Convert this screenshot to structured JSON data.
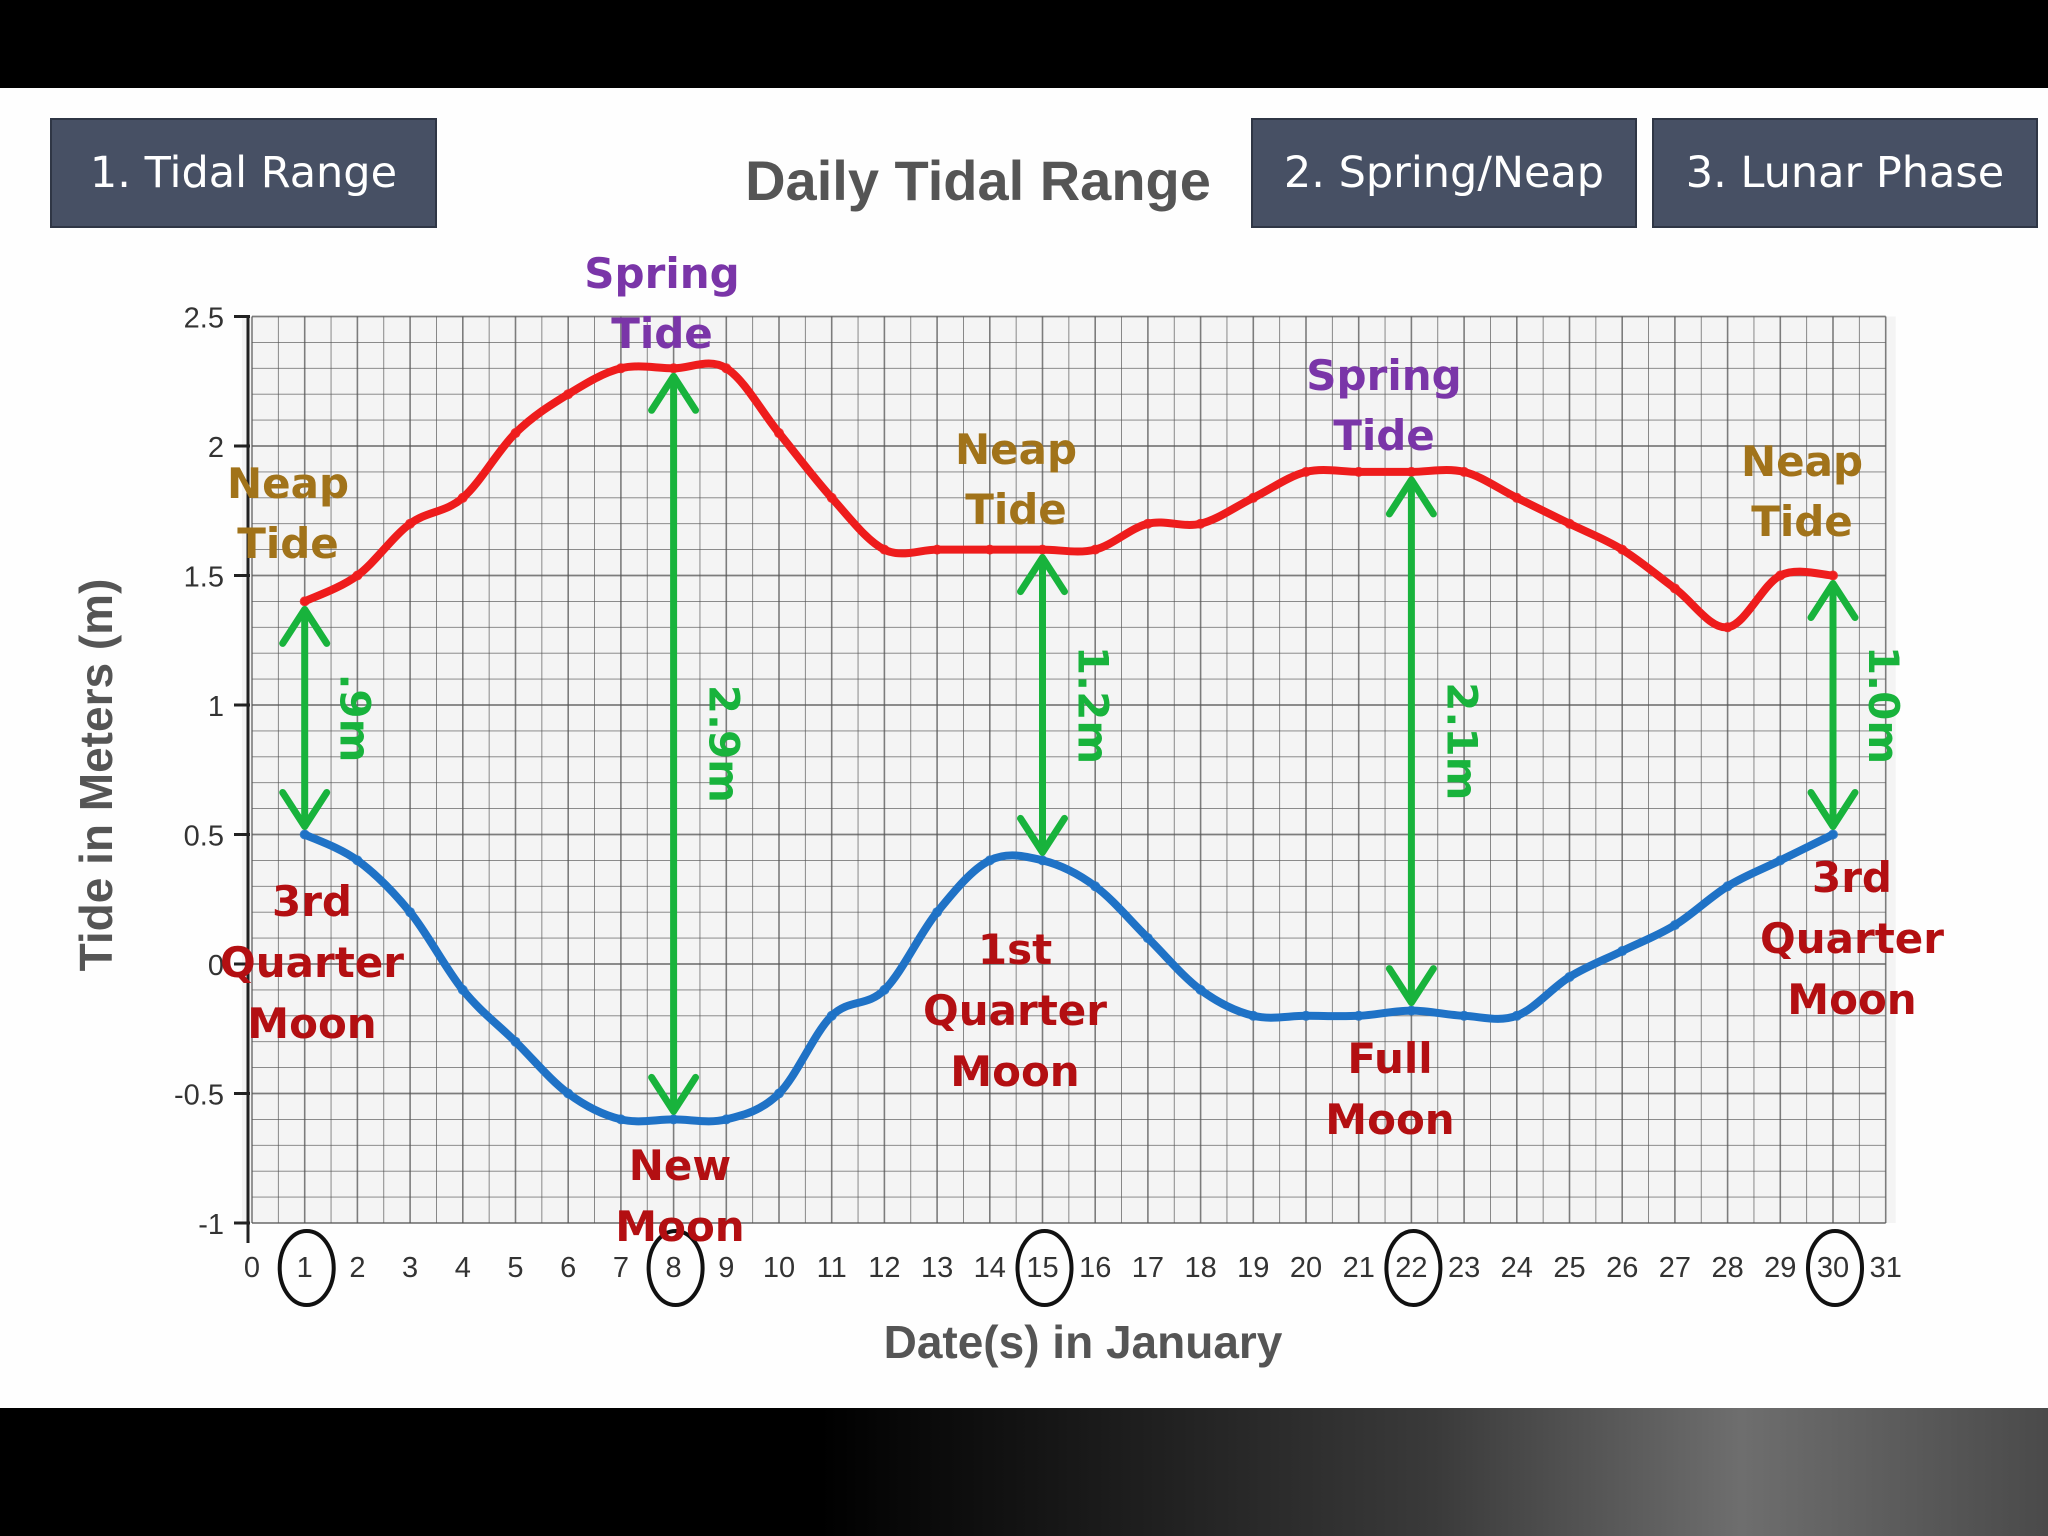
{
  "nav": {
    "button1": "1. Tidal Range",
    "button2": "2. Spring/Neap",
    "button3": "3. Lunar Phase"
  },
  "colors": {
    "high_tide": "#ee1c1c",
    "low_tide": "#1f72c6",
    "arrow": "#18b33c",
    "moon_label": "#b30f12",
    "neap_label": "#a1731a",
    "spring_label": "#7a35a8",
    "nav_button": "#475064"
  },
  "chart_data": {
    "type": "line",
    "title": "Daily Tidal Range",
    "xlabel": "Date(s) in January",
    "ylabel": "Tide in Meters (m)",
    "xlim": [
      0,
      31
    ],
    "ylim": [
      -1,
      2.5
    ],
    "x_ticks": [
      "0",
      "1",
      "2",
      "3",
      "4",
      "5",
      "6",
      "7",
      "8",
      "9",
      "10",
      "11",
      "12",
      "13",
      "14",
      "15",
      "16",
      "17",
      "18",
      "19",
      "20",
      "21",
      "22",
      "23",
      "24",
      "25",
      "26",
      "27",
      "28",
      "29",
      "30",
      "31"
    ],
    "y_ticks": [
      "-1",
      "-0.5",
      "0",
      "0.5",
      "1",
      "1.5",
      "2",
      "2.5"
    ],
    "grid": true,
    "series": [
      {
        "x": [
          1,
          2,
          3,
          4,
          5,
          6,
          7,
          8,
          9,
          10,
          11,
          12,
          13,
          14,
          15,
          16,
          17,
          18,
          19,
          20,
          21,
          22,
          23,
          24,
          25,
          26,
          27,
          28,
          29,
          30
        ],
        "values": [
          1.4,
          1.5,
          1.7,
          1.8,
          2.05,
          2.2,
          2.3,
          2.3,
          2.3,
          2.05,
          1.8,
          1.6,
          1.6,
          1.6,
          1.6,
          1.6,
          1.7,
          1.7,
          1.8,
          1.9,
          1.9,
          1.9,
          1.9,
          1.8,
          1.7,
          1.6,
          1.45,
          1.3,
          1.5,
          1.5
        ]
      },
      {
        "x": [
          1,
          2,
          3,
          4,
          5,
          6,
          7,
          8,
          9,
          10,
          11,
          12,
          13,
          14,
          15,
          16,
          17,
          18,
          19,
          20,
          21,
          22,
          23,
          24,
          25,
          26,
          27,
          28,
          29,
          30
        ],
        "values": [
          0.5,
          0.4,
          0.2,
          -0.1,
          -0.3,
          -0.5,
          -0.6,
          -0.6,
          -0.6,
          -0.5,
          -0.2,
          -0.1,
          0.2,
          0.4,
          0.4,
          0.3,
          0.1,
          -0.1,
          -0.2,
          -0.2,
          -0.2,
          -0.18,
          -0.2,
          -0.2,
          -0.05,
          0.05,
          0.15,
          0.3,
          0.4,
          0.5
        ]
      }
    ],
    "ranges": [
      {
        "x": 1,
        "label": ".9m"
      },
      {
        "x": 8,
        "label": "2.9m"
      },
      {
        "x": 15,
        "label": "1.2m"
      },
      {
        "x": 22,
        "label": "2.1m"
      },
      {
        "x": 30,
        "label": "1.0m"
      }
    ],
    "circled_dates": [
      "1",
      "8",
      "15",
      "22",
      "30"
    ],
    "tide_labels": [
      {
        "kind": "neap",
        "line1": "Neap",
        "line2": "Tide"
      },
      {
        "kind": "spring",
        "line1": "Spring",
        "line2": "Tide"
      },
      {
        "kind": "neap",
        "line1": "Neap",
        "line2": "Tide"
      },
      {
        "kind": "spring",
        "line1": "Spring",
        "line2": "Tide"
      },
      {
        "kind": "neap",
        "line1": "Neap",
        "line2": "Tide"
      }
    ],
    "moon_labels": [
      {
        "lines": [
          "3rd",
          "Quarter",
          "Moon"
        ]
      },
      {
        "lines": [
          "New",
          "Moon"
        ]
      },
      {
        "lines": [
          "1st",
          "Quarter",
          "Moon"
        ]
      },
      {
        "lines": [
          "Full",
          "Moon"
        ]
      },
      {
        "lines": [
          "3rd",
          "Quarter",
          "Moon"
        ]
      }
    ]
  }
}
